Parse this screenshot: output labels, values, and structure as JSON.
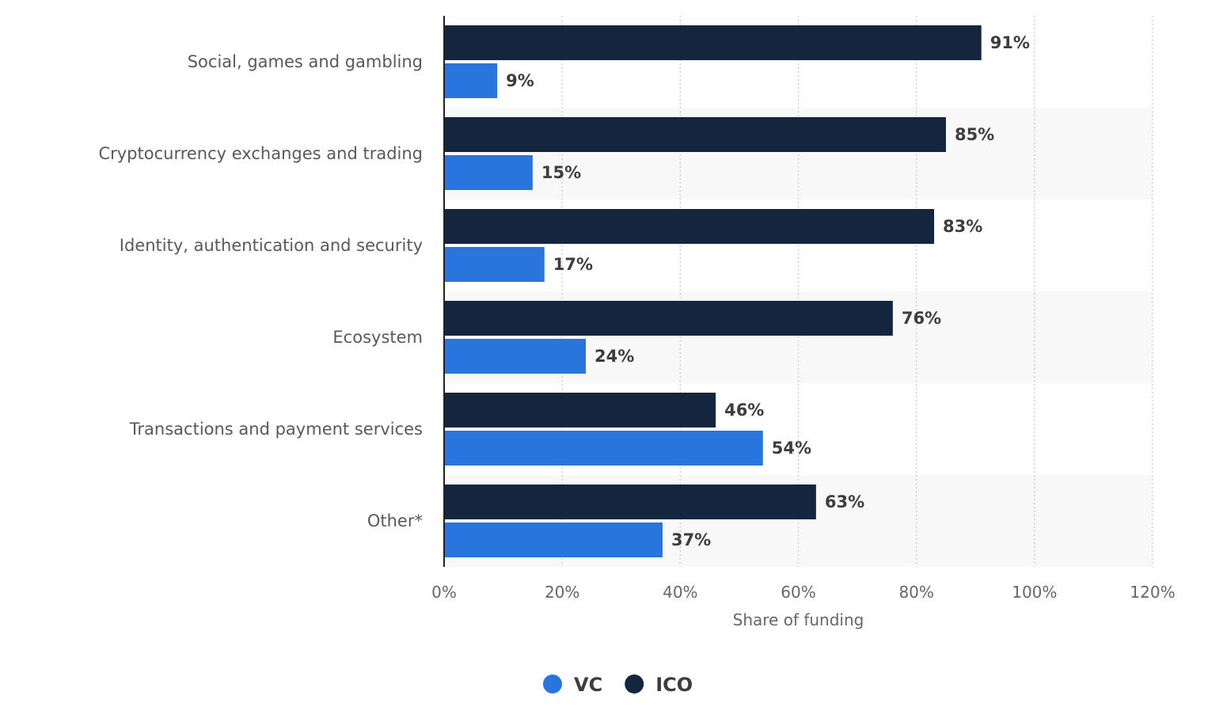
{
  "chart_data": {
    "type": "bar",
    "orientation": "horizontal",
    "categories": [
      "Social, games and gambling",
      "Cryptocurrency exchanges and trading",
      "Identity, authentication and security",
      "Ecosystem",
      "Transactions and payment services",
      "Other*"
    ],
    "series": [
      {
        "name": "ICO",
        "color": "#14263e",
        "values": [
          91,
          85,
          83,
          76,
          46,
          63
        ],
        "labels": [
          "91%",
          "85%",
          "83%",
          "76%",
          "46%",
          "63%"
        ]
      },
      {
        "name": "VC",
        "color": "#2876dd",
        "values": [
          9,
          15,
          17,
          24,
          54,
          37
        ],
        "labels": [
          "9%",
          "15%",
          "17%",
          "24%",
          "54%",
          "37%"
        ]
      }
    ],
    "xlabel": "Share of funding",
    "xlim": [
      0,
      120
    ],
    "xticks": [
      0,
      20,
      40,
      60,
      80,
      100,
      120
    ],
    "xtick_labels": [
      "0%",
      "20%",
      "40%",
      "60%",
      "80%",
      "100%",
      "120%"
    ],
    "grid": true,
    "legend": {
      "position": "bottom",
      "items": [
        {
          "name": "VC",
          "color": "#2876dd"
        },
        {
          "name": "ICO",
          "color": "#14263e"
        }
      ]
    }
  }
}
